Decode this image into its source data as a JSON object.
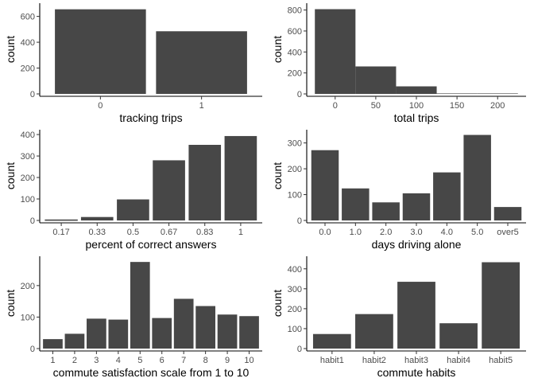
{
  "chart_data": [
    {
      "id": "tracking_trips",
      "type": "bar",
      "categories": [
        "0",
        "1"
      ],
      "values": [
        655,
        485
      ],
      "xlabel": "tracking trips",
      "ylabel": "count",
      "ylim": [
        0,
        690
      ],
      "yticks": [
        0,
        200,
        400,
        600
      ]
    },
    {
      "id": "total_trips",
      "type": "histogram",
      "bins": [
        {
          "x0": -25,
          "x1": 25,
          "count": 808
        },
        {
          "x0": 25,
          "x1": 75,
          "count": 262
        },
        {
          "x0": 75,
          "x1": 125,
          "count": 72
        },
        {
          "x0": 125,
          "x1": 175,
          "count": 0
        },
        {
          "x0": 175,
          "x1": 225,
          "count": 3
        }
      ],
      "xlabel": "total trips",
      "ylabel": "count",
      "xlim": [
        -35,
        235
      ],
      "ylim": [
        0,
        850
      ],
      "xticks": [
        0,
        50,
        100,
        150,
        200
      ],
      "yticks": [
        0,
        200,
        400,
        600,
        800
      ]
    },
    {
      "id": "percent_correct",
      "type": "bar",
      "categories": [
        "0.17",
        "0.33",
        "0.5",
        "0.67",
        "0.83",
        "1"
      ],
      "values": [
        3,
        16,
        98,
        280,
        352,
        393
      ],
      "xlabel": "percent of correct answers",
      "ylabel": "count",
      "ylim": [
        0,
        415
      ],
      "yticks": [
        0,
        100,
        200,
        300,
        400
      ]
    },
    {
      "id": "days_driving_alone",
      "type": "bar",
      "categories": [
        "0.0",
        "1.0",
        "2.0",
        "3.0",
        "4.0",
        "5.0",
        "over5"
      ],
      "values": [
        272,
        124,
        70,
        105,
        186,
        331,
        52
      ],
      "xlabel": "days driving alone",
      "ylabel": "count",
      "ylim": [
        0,
        345
      ],
      "yticks": [
        0,
        100,
        200,
        300
      ]
    },
    {
      "id": "commute_satisfaction",
      "type": "bar",
      "categories": [
        "1",
        "2",
        "3",
        "4",
        "5",
        "6",
        "7",
        "8",
        "9",
        "10"
      ],
      "values": [
        30,
        47,
        95,
        92,
        275,
        97,
        158,
        135,
        108,
        103
      ],
      "xlabel": "commute satisfaction scale from 1 to 10",
      "ylabel": "count",
      "ylim": [
        0,
        288
      ],
      "yticks": [
        0,
        100,
        200
      ]
    },
    {
      "id": "commute_habits",
      "type": "bar",
      "categories": [
        "habit1",
        "habit2",
        "habit3",
        "habit4",
        "habit5"
      ],
      "values": [
        73,
        173,
        335,
        127,
        433
      ],
      "xlabel": "commute habits",
      "ylabel": "count",
      "ylim": [
        0,
        455
      ],
      "yticks": [
        0,
        100,
        200,
        300,
        400
      ]
    }
  ]
}
